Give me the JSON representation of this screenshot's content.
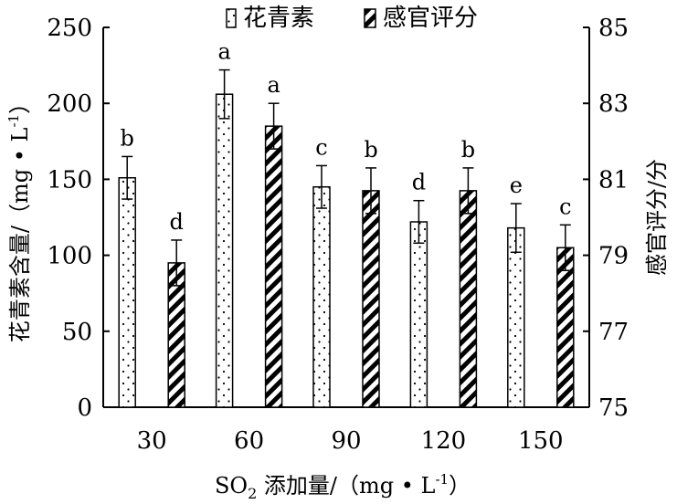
{
  "chart_data": {
    "type": "bar",
    "categories": [
      "30",
      "60",
      "90",
      "120",
      "150"
    ],
    "xlabel": "SO2 添加量/（mg • L-1）",
    "xlabel_parts": {
      "prefix": "SO",
      "sub": "2",
      "mid": " 添加量/（mg • L",
      "sup": "-1",
      "suffix": "）"
    },
    "ylabel": "花青素含量/（mg • L-1）",
    "ylabel_parts": {
      "prefix": "花青素含量/（mg • L",
      "sup": "-1",
      "suffix": "）"
    },
    "y2label": "感官评分/分",
    "ylim": [
      0,
      250
    ],
    "y2lim": [
      75,
      85
    ],
    "yticks": [
      0,
      50,
      100,
      150,
      200,
      250
    ],
    "y2ticks": [
      75,
      77,
      79,
      81,
      83,
      85
    ],
    "legend_position": "top",
    "series": [
      {
        "name": "花青素",
        "axis": "left",
        "pattern": "dots",
        "values": [
          151,
          206,
          145,
          122,
          118
        ],
        "errors": [
          14,
          16,
          14,
          14,
          16
        ],
        "labels": [
          "b",
          "a",
          "c",
          "d",
          "e"
        ]
      },
      {
        "name": "感官评分",
        "axis": "right",
        "pattern": "diagonal-stripes",
        "values": [
          78.8,
          82.4,
          80.7,
          80.7,
          79.2
        ],
        "errors": [
          0.6,
          0.6,
          0.6,
          0.6,
          0.6
        ],
        "labels": [
          "d",
          "a",
          "b",
          "b",
          "c"
        ]
      }
    ],
    "colors": {
      "bar_fill": "#ffffff",
      "stroke": "#000000"
    }
  }
}
